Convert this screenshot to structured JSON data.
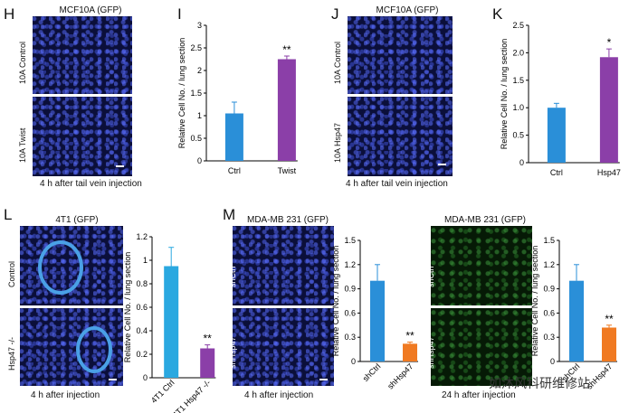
{
  "panels": {
    "H": {
      "letter": "H",
      "title": "MCF10A (GFP)",
      "row_labels": [
        "10A Control",
        "10A Twist"
      ],
      "caption": "4 h after tail vein injection"
    },
    "I": {
      "letter": "I"
    },
    "J": {
      "letter": "J",
      "title": "MCF10A (GFP)",
      "row_labels": [
        "10A Control",
        "10A Hsp47"
      ],
      "caption": "4 h after tail vein injection"
    },
    "K": {
      "letter": "K"
    },
    "L": {
      "letter": "L",
      "title": "4T1 (GFP)",
      "row_labels": [
        "Control",
        "Hsp47 -/-"
      ],
      "caption": "4 h after injection"
    },
    "M": {
      "letter": "M",
      "title1": "MDA-MB 231 (GFP)",
      "title2": "MDA-MB 231 (GFP)",
      "row_labels": [
        "shCtrl",
        "shHsp47"
      ],
      "row_labels2": [
        "shCtrl",
        "shHsp47"
      ],
      "caption1": "4 h after injection",
      "caption2": "24 h after injection"
    }
  },
  "colors": {
    "ctrl": "#2a8fd8",
    "purple": "#8b3fa8",
    "orange": "#f07a22",
    "micro_blue": "#0b0f3a",
    "micro_green": "#061a06"
  },
  "watermark": "如沐风科研维修站",
  "chart_data": [
    {
      "id": "I",
      "type": "bar",
      "categories": [
        "Ctrl",
        "Twist"
      ],
      "values": [
        1.05,
        2.25
      ],
      "errors": [
        0.25,
        0.07
      ],
      "colors": [
        "#2a8fd8",
        "#8b3fa8"
      ],
      "significance": [
        "",
        "**"
      ],
      "ylabel": "Relative Cell No. / lung section",
      "ylim": [
        0,
        3
      ],
      "yticks": [
        "0",
        "0.5",
        "1",
        "1.5",
        "2",
        "2.5",
        "3"
      ],
      "tick_values": [
        0,
        0.5,
        1,
        1.5,
        2,
        2.5,
        3
      ]
    },
    {
      "id": "K",
      "type": "bar",
      "categories": [
        "Ctrl",
        "Hsp47"
      ],
      "values": [
        1.0,
        1.92
      ],
      "errors": [
        0.08,
        0.15
      ],
      "colors": [
        "#2a8fd8",
        "#8b3fa8"
      ],
      "significance": [
        "",
        "*"
      ],
      "ylabel": "Relative Cell No. / lung section",
      "ylim": [
        0,
        2.5
      ],
      "yticks": [
        "0",
        "0.5",
        "1.0",
        "1.5",
        "2.0",
        "2.5"
      ],
      "tick_values": [
        0,
        0.5,
        1,
        1.5,
        2,
        2.5
      ]
    },
    {
      "id": "L",
      "type": "bar",
      "categories": [
        "4T1 Ctrl",
        "4T1 Hsp47 -/-"
      ],
      "values": [
        0.95,
        0.25
      ],
      "errors": [
        0.16,
        0.03
      ],
      "colors": [
        "#2aa8e0",
        "#8b3fa8"
      ],
      "significance": [
        "",
        "**"
      ],
      "ylabel": "Relative Cell No. / lung section",
      "ylim": [
        0,
        1.2
      ],
      "yticks": [
        "0",
        "0.2",
        "0.4",
        "0.6",
        "0.8",
        "1",
        "1.2"
      ],
      "tick_values": [
        0,
        0.2,
        0.4,
        0.6,
        0.8,
        1,
        1.2
      ]
    },
    {
      "id": "M1",
      "type": "bar",
      "categories": [
        "shCtrl",
        "shHsp47"
      ],
      "values": [
        1.0,
        0.22
      ],
      "errors": [
        0.2,
        0.02
      ],
      "colors": [
        "#2a8fd8",
        "#f07a22"
      ],
      "significance": [
        "",
        "**"
      ],
      "ylabel": "Relative Cell No. / lung section",
      "ylim": [
        0,
        1.5
      ],
      "yticks": [
        "0",
        "0.3",
        "0.6",
        "0.9",
        "1.2",
        "1.5"
      ],
      "tick_values": [
        0,
        0.3,
        0.6,
        0.9,
        1.2,
        1.5
      ]
    },
    {
      "id": "M2",
      "type": "bar",
      "categories": [
        "shCtrl",
        "shHsp47"
      ],
      "values": [
        1.0,
        0.42
      ],
      "errors": [
        0.2,
        0.03
      ],
      "colors": [
        "#2a8fd8",
        "#f07a22"
      ],
      "significance": [
        "",
        "**"
      ],
      "ylabel": "Relative Cell No. / lung section",
      "ylim": [
        0,
        1.5
      ],
      "yticks": [
        "0",
        "0.3",
        "0.6",
        "0.9",
        "1.2",
        "1.5"
      ],
      "tick_values": [
        0,
        0.3,
        0.6,
        0.9,
        1.2,
        1.5
      ]
    }
  ]
}
